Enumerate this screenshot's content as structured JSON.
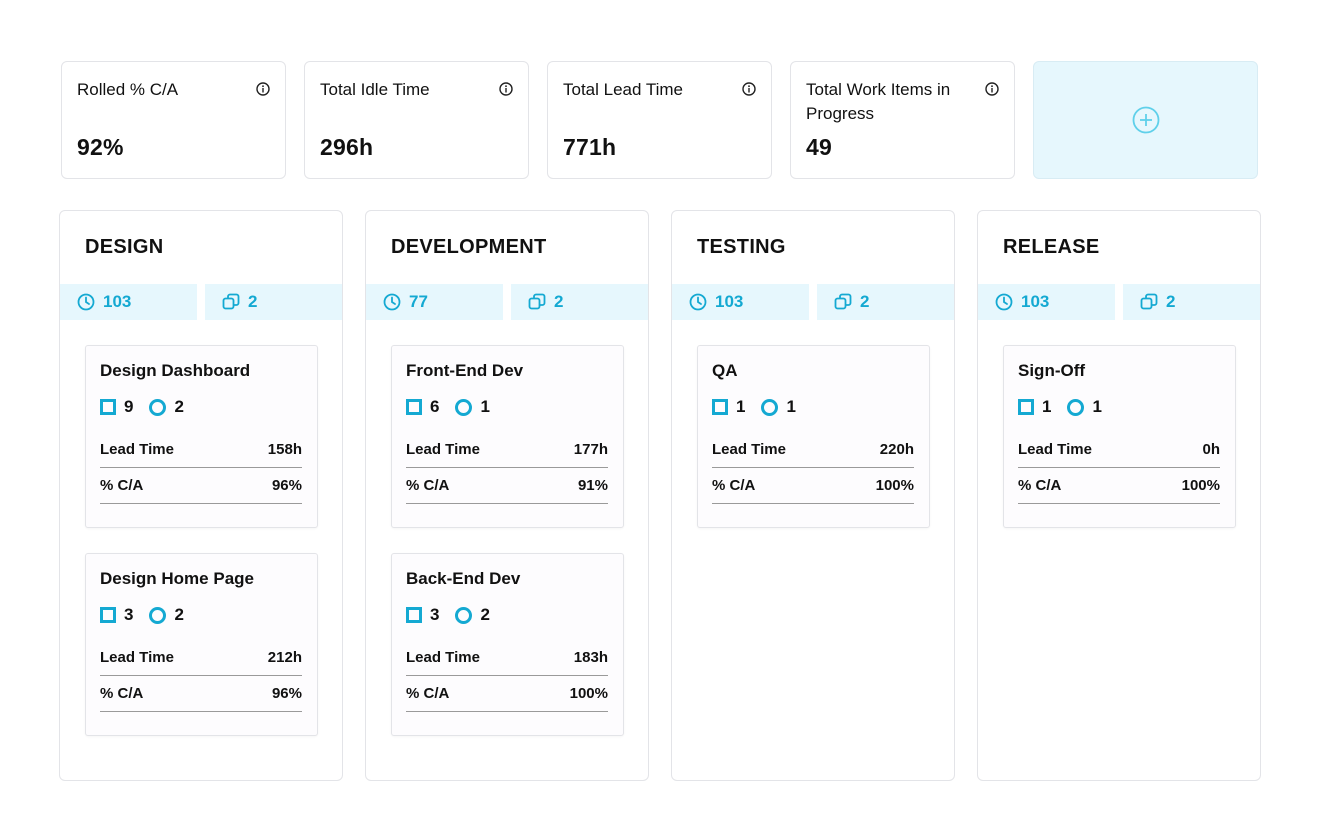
{
  "metrics": [
    {
      "title": "Rolled % C/A",
      "value": "92%"
    },
    {
      "title": "Total Idle Time",
      "value": "296h"
    },
    {
      "title": "Total Lead Time",
      "value": "771h"
    },
    {
      "title": "Total Work Items in Progress",
      "value": "49"
    }
  ],
  "add_metric_icon": "plus-circle-icon",
  "colors": {
    "accent": "#14a9d2",
    "accent_bg": "#e6f7fd",
    "border": "#e3e4e8"
  },
  "columns": [
    {
      "title": "DESIGN",
      "time": "103",
      "items": "2",
      "cards": [
        {
          "title": "Design Dashboard",
          "squares": "9",
          "circles": "2",
          "lead_label": "Lead Time",
          "lead": "158h",
          "ca_label": "% C/A",
          "ca": "96%"
        },
        {
          "title": "Design Home Page",
          "squares": "3",
          "circles": "2",
          "lead_label": "Lead Time",
          "lead": "212h",
          "ca_label": "% C/A",
          "ca": "96%"
        }
      ]
    },
    {
      "title": "DEVELOPMENT",
      "time": "77",
      "items": "2",
      "cards": [
        {
          "title": "Front-End Dev",
          "squares": "6",
          "circles": "1",
          "lead_label": "Lead Time",
          "lead": "177h",
          "ca_label": "% C/A",
          "ca": "91%"
        },
        {
          "title": "Back-End Dev",
          "squares": "3",
          "circles": "2",
          "lead_label": "Lead Time",
          "lead": "183h",
          "ca_label": "% C/A",
          "ca": "100%"
        }
      ]
    },
    {
      "title": "TESTING",
      "time": "103",
      "items": "2",
      "cards": [
        {
          "title": "QA",
          "squares": "1",
          "circles": "1",
          "lead_label": "Lead Time",
          "lead": "220h",
          "ca_label": "% C/A",
          "ca": "100%"
        }
      ]
    },
    {
      "title": "RELEASE",
      "time": "103",
      "items": "2",
      "cards": [
        {
          "title": "Sign-Off",
          "squares": "1",
          "circles": "1",
          "lead_label": "Lead Time",
          "lead": "0h",
          "ca_label": "% C/A",
          "ca": "100%"
        }
      ]
    }
  ]
}
